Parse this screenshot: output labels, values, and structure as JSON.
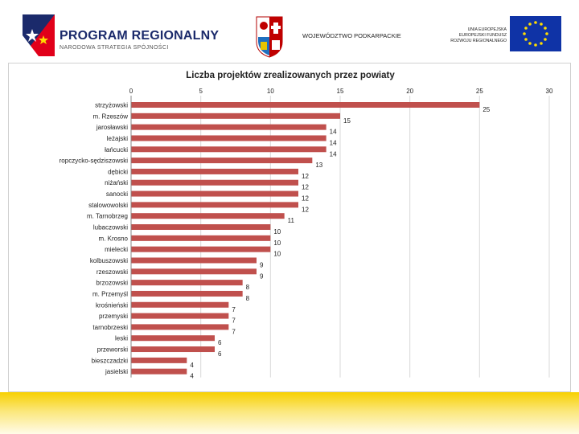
{
  "header": {
    "program_title": "PROGRAM REGIONALNY",
    "program_subtitle": "NARODOWA STRATEGIA SPÓJNOŚCI",
    "region_name": "WOJEWÓDZTWO PODKARPACKIE",
    "eu_lines": [
      "UNIA EUROPEJSKA",
      "EUROPEJSKI FUNDUSZ",
      "ROZWOJU REGIONALNEGO"
    ],
    "colors": {
      "brand_blue": "#1b2a6b",
      "eu_blue": "#0f33a6",
      "eu_star": "#ffdd00"
    }
  },
  "chart_data": {
    "type": "bar",
    "orientation": "horizontal",
    "title": "Liczba projektów zrealizowanych przez powiaty",
    "categories": [
      "strzyżowski",
      "m. Rzeszów",
      "jarosławski",
      "leżajski",
      "łańcucki",
      "ropczycko-sędziszowski",
      "dębicki",
      "niżański",
      "sanocki",
      "stalowowolski",
      "m. Tarnobrzeg",
      "lubaczowski",
      "m. Krosno",
      "mielecki",
      "kolbuszowski",
      "rzeszowski",
      "brzozowski",
      "m. Przemyśl",
      "krośnieński",
      "przemyski",
      "tarnobrzeski",
      "leski",
      "przeworski",
      "bieszczadzki",
      "jasielski"
    ],
    "values": [
      25,
      15,
      14,
      14,
      14,
      13,
      12,
      12,
      12,
      12,
      11,
      10,
      10,
      10,
      9,
      9,
      8,
      8,
      7,
      7,
      7,
      6,
      6,
      4,
      4
    ],
    "x_ticks": [
      "0",
      "5",
      "10",
      "15",
      "20",
      "25",
      "30"
    ],
    "xlim": [
      0,
      30
    ],
    "grid": true,
    "legend": "none",
    "bar_color": "#c0504d",
    "grid_color": "#d9d9d9"
  }
}
